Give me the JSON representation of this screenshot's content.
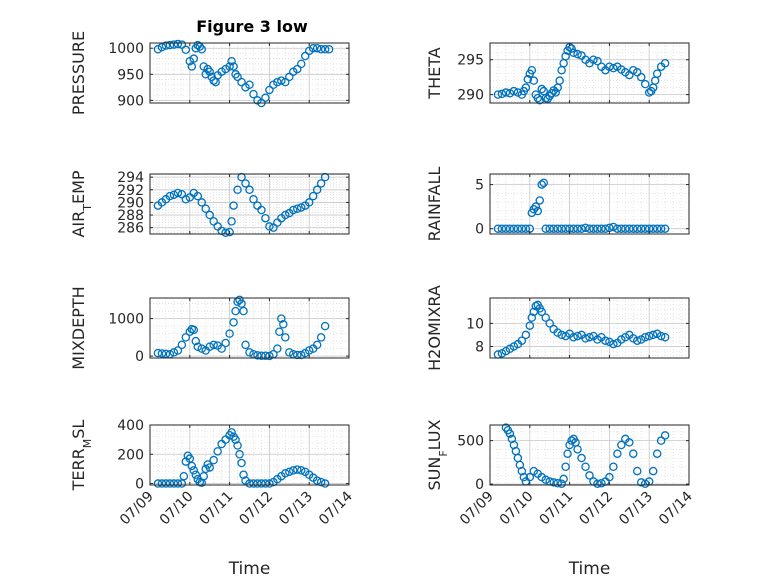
{
  "title": "Figure 3 low",
  "marker_color": "#0072BD",
  "x_tick_labels": [
    "07/09",
    "07/10",
    "07/11",
    "07/12",
    "07/13",
    "07/14"
  ],
  "chart_data": [
    {
      "type": "scatter",
      "id": "pressure",
      "ylabel": "PRESSURE",
      "xlabel": "",
      "xlim": [
        0,
        5
      ],
      "ylim": [
        895,
        1010
      ],
      "yticks": [
        900,
        950,
        1000
      ],
      "x": [
        0.2,
        0.3,
        0.4,
        0.5,
        0.6,
        0.7,
        0.8,
        0.9,
        1.0,
        1.05,
        1.1,
        1.15,
        1.2,
        1.25,
        1.3,
        1.35,
        1.4,
        1.45,
        1.5,
        1.55,
        1.6,
        1.65,
        1.7,
        1.8,
        1.9,
        2.0,
        2.05,
        2.1,
        2.15,
        2.2,
        2.3,
        2.4,
        2.5,
        2.6,
        2.7,
        2.8,
        2.9,
        3.0,
        3.1,
        3.2,
        3.3,
        3.4,
        3.5,
        3.6,
        3.7,
        3.8,
        3.9,
        4.0,
        4.1,
        4.2,
        4.3,
        4.4,
        4.5
      ],
      "y": [
        998,
        1002,
        1005,
        1006,
        1007,
        1008,
        1007,
        997,
        975,
        965,
        980,
        1000,
        1006,
        1003,
        998,
        965,
        950,
        960,
        955,
        945,
        938,
        935,
        948,
        955,
        960,
        965,
        975,
        965,
        950,
        945,
        935,
        925,
        930,
        912,
        900,
        895,
        905,
        920,
        930,
        935,
        938,
        935,
        945,
        955,
        960,
        970,
        985,
        995,
        1000,
        1000,
        998,
        998,
        998
      ]
    },
    {
      "type": "scatter",
      "id": "theta",
      "ylabel": "THETA",
      "xlabel": "",
      "xlim": [
        0,
        5
      ],
      "ylim": [
        288.8,
        297.4
      ],
      "yticks": [
        290,
        295
      ],
      "x": [
        0.2,
        0.3,
        0.4,
        0.5,
        0.6,
        0.7,
        0.8,
        0.85,
        0.9,
        0.95,
        1.0,
        1.05,
        1.1,
        1.15,
        1.2,
        1.25,
        1.3,
        1.35,
        1.4,
        1.45,
        1.5,
        1.55,
        1.6,
        1.65,
        1.7,
        1.75,
        1.8,
        1.85,
        1.9,
        1.95,
        2.0,
        2.05,
        2.1,
        2.2,
        2.3,
        2.4,
        2.5,
        2.6,
        2.7,
        2.8,
        2.9,
        3.0,
        3.1,
        3.2,
        3.3,
        3.4,
        3.5,
        3.6,
        3.7,
        3.8,
        3.9,
        4.0,
        4.05,
        4.1,
        4.15,
        4.2,
        4.3,
        4.4
      ],
      "y": [
        290.0,
        290.1,
        290.3,
        290.2,
        290.5,
        290.3,
        290.0,
        290.5,
        291.0,
        292.2,
        293.0,
        293.5,
        292.0,
        290.0,
        289.5,
        289.2,
        290.8,
        290.5,
        289.5,
        289.4,
        289.8,
        290.2,
        290.6,
        290.3,
        291.0,
        292.0,
        293.5,
        294.5,
        295.5,
        296.3,
        296.8,
        296.6,
        296.0,
        295.8,
        295.6,
        295.0,
        294.5,
        295.0,
        294.8,
        294.0,
        293.5,
        294.0,
        293.8,
        294.0,
        293.6,
        293.2,
        292.8,
        293.5,
        293.2,
        292.5,
        291.5,
        290.3,
        290.5,
        291.0,
        292.0,
        293.0,
        294.0,
        294.5
      ]
    },
    {
      "type": "scatter",
      "id": "air_temp",
      "ylabel": "AIR",
      "ylabel_sub": "T",
      "ylabel_suffix": "EMP",
      "xlabel": "",
      "xlim": [
        0,
        5
      ],
      "ylim": [
        285.0,
        294.5
      ],
      "yticks": [
        286,
        288,
        290,
        292,
        294
      ],
      "x": [
        0.2,
        0.3,
        0.4,
        0.5,
        0.6,
        0.7,
        0.8,
        0.9,
        1.0,
        1.1,
        1.2,
        1.3,
        1.4,
        1.5,
        1.6,
        1.7,
        1.8,
        1.9,
        2.0,
        2.05,
        2.1,
        2.2,
        2.3,
        2.4,
        2.5,
        2.6,
        2.7,
        2.8,
        2.9,
        3.0,
        3.1,
        3.2,
        3.3,
        3.4,
        3.5,
        3.6,
        3.7,
        3.8,
        3.9,
        4.0,
        4.1,
        4.2,
        4.3,
        4.4
      ],
      "y": [
        289.5,
        290.0,
        290.5,
        291.0,
        291.2,
        291.5,
        291.3,
        290.5,
        290.8,
        291.5,
        291.0,
        290.0,
        289.0,
        288.0,
        287.0,
        286.2,
        285.5,
        285.2,
        285.3,
        287.0,
        289.5,
        292.0,
        294.0,
        293.0,
        292.0,
        290.5,
        289.5,
        288.8,
        287.5,
        286.2,
        286.0,
        286.8,
        287.5,
        288.0,
        288.3,
        288.8,
        289.0,
        289.2,
        289.5,
        290.0,
        291.0,
        292.0,
        293.0,
        294.0
      ]
    },
    {
      "type": "scatter",
      "id": "rainfall",
      "ylabel": "RAINFALL",
      "xlabel": "",
      "xlim": [
        0,
        5
      ],
      "ylim": [
        -0.6,
        6.2
      ],
      "yticks": [
        0,
        5
      ],
      "x": [
        0.2,
        0.3,
        0.4,
        0.5,
        0.6,
        0.7,
        0.8,
        0.9,
        1.0,
        1.05,
        1.1,
        1.15,
        1.2,
        1.25,
        1.3,
        1.35,
        1.4,
        1.5,
        1.6,
        1.7,
        1.8,
        1.9,
        2.0,
        2.1,
        2.2,
        2.3,
        2.4,
        2.5,
        2.6,
        2.7,
        2.8,
        2.9,
        3.0,
        3.1,
        3.2,
        3.3,
        3.4,
        3.5,
        3.6,
        3.7,
        3.8,
        3.9,
        4.0,
        4.1,
        4.2,
        4.3,
        4.4
      ],
      "y": [
        0,
        0,
        0,
        0,
        0,
        0,
        0,
        0,
        0,
        1.8,
        2.2,
        2.5,
        2.0,
        3.2,
        5.0,
        5.2,
        0,
        0,
        0,
        0,
        0,
        0,
        0,
        0,
        0,
        0,
        0.1,
        0,
        0,
        0,
        0,
        0,
        0.1,
        0.2,
        0,
        0,
        0,
        0,
        0,
        0,
        0,
        0,
        0,
        0,
        0,
        0,
        0
      ]
    },
    {
      "type": "scatter",
      "id": "mixdepth",
      "ylabel": "MIXDEPTH",
      "xlabel": "",
      "xlim": [
        0,
        5
      ],
      "ylim": [
        -50,
        1550
      ],
      "yticks": [
        0,
        1000
      ],
      "x": [
        0.2,
        0.3,
        0.4,
        0.5,
        0.6,
        0.7,
        0.8,
        0.9,
        1.0,
        1.05,
        1.1,
        1.15,
        1.2,
        1.3,
        1.4,
        1.5,
        1.6,
        1.7,
        1.8,
        1.9,
        2.0,
        2.1,
        2.15,
        2.2,
        2.25,
        2.3,
        2.35,
        2.4,
        2.5,
        2.6,
        2.7,
        2.8,
        2.9,
        3.0,
        3.1,
        3.2,
        3.25,
        3.3,
        3.35,
        3.4,
        3.5,
        3.6,
        3.7,
        3.8,
        3.9,
        4.0,
        4.1,
        4.2,
        4.3,
        4.4
      ],
      "y": [
        80,
        70,
        60,
        50,
        100,
        150,
        300,
        500,
        650,
        720,
        700,
        400,
        250,
        200,
        150,
        250,
        300,
        280,
        200,
        350,
        600,
        900,
        1200,
        1450,
        1500,
        1400,
        1200,
        300,
        100,
        50,
        20,
        10,
        10,
        5,
        50,
        200,
        650,
        1000,
        850,
        500,
        100,
        50,
        30,
        30,
        80,
        150,
        200,
        300,
        500,
        800
      ]
    },
    {
      "type": "scatter",
      "id": "h2omixra",
      "ylabel": "H2OMIXRA",
      "xlabel": "",
      "xlim": [
        0,
        5
      ],
      "ylim": [
        7.0,
        12.2
      ],
      "yticks": [
        8,
        10
      ],
      "x": [
        0.2,
        0.3,
        0.4,
        0.5,
        0.6,
        0.7,
        0.8,
        0.9,
        1.0,
        1.05,
        1.1,
        1.15,
        1.2,
        1.25,
        1.3,
        1.4,
        1.5,
        1.6,
        1.7,
        1.8,
        1.9,
        2.0,
        2.1,
        2.2,
        2.3,
        2.4,
        2.5,
        2.6,
        2.7,
        2.8,
        2.9,
        3.0,
        3.1,
        3.2,
        3.3,
        3.4,
        3.5,
        3.6,
        3.7,
        3.8,
        3.9,
        4.0,
        4.1,
        4.2,
        4.3,
        4.4
      ],
      "y": [
        7.3,
        7.4,
        7.6,
        7.8,
        8.0,
        8.2,
        8.5,
        9.0,
        9.8,
        10.5,
        11.0,
        11.5,
        11.6,
        11.3,
        11.0,
        10.5,
        10.0,
        9.5,
        9.2,
        9.0,
        8.9,
        9.1,
        8.8,
        8.9,
        9.0,
        8.7,
        8.8,
        8.9,
        8.6,
        8.8,
        8.5,
        8.4,
        8.2,
        8.3,
        8.6,
        8.8,
        9.0,
        8.7,
        8.5,
        8.6,
        8.8,
        8.9,
        9.0,
        9.1,
        8.9,
        8.8
      ]
    },
    {
      "type": "scatter",
      "id": "terr_msl",
      "ylabel": "TERR",
      "ylabel_sub": "M",
      "ylabel_suffix": "SL",
      "xlabel": "Time",
      "xlim": [
        0,
        5
      ],
      "ylim": [
        -10,
        400
      ],
      "yticks": [
        0,
        200,
        400
      ],
      "x": [
        0.2,
        0.3,
        0.4,
        0.5,
        0.6,
        0.7,
        0.8,
        0.85,
        0.9,
        0.95,
        1.0,
        1.05,
        1.1,
        1.15,
        1.2,
        1.25,
        1.3,
        1.35,
        1.4,
        1.45,
        1.5,
        1.6,
        1.7,
        1.8,
        1.9,
        2.0,
        2.05,
        2.1,
        2.15,
        2.2,
        2.25,
        2.3,
        2.35,
        2.4,
        2.5,
        2.6,
        2.7,
        2.8,
        2.9,
        3.0,
        3.1,
        3.2,
        3.3,
        3.4,
        3.5,
        3.6,
        3.7,
        3.8,
        3.9,
        4.0,
        4.1,
        4.2,
        4.3,
        4.4
      ],
      "y": [
        0,
        0,
        0,
        0,
        0,
        0,
        0,
        50,
        150,
        190,
        170,
        120,
        90,
        60,
        30,
        10,
        5,
        50,
        100,
        130,
        110,
        160,
        220,
        270,
        300,
        330,
        350,
        320,
        300,
        260,
        200,
        140,
        60,
        20,
        0,
        0,
        0,
        0,
        0,
        0,
        10,
        30,
        50,
        70,
        80,
        90,
        95,
        90,
        80,
        60,
        40,
        20,
        10,
        0
      ]
    },
    {
      "type": "scatter",
      "id": "sunflux",
      "ylabel": "SUN",
      "ylabel_sub": "F",
      "ylabel_suffix": "LUX",
      "xlabel": "Time",
      "xlim": [
        0,
        5
      ],
      "ylim": [
        -10,
        680
      ],
      "yticks": [
        0,
        500
      ],
      "x": [
        0.4,
        0.45,
        0.5,
        0.55,
        0.6,
        0.65,
        0.7,
        0.75,
        0.8,
        0.85,
        0.9,
        1.0,
        1.1,
        1.2,
        1.3,
        1.4,
        1.5,
        1.6,
        1.7,
        1.8,
        1.85,
        1.9,
        1.95,
        2.0,
        2.05,
        2.1,
        2.15,
        2.2,
        2.3,
        2.4,
        2.5,
        2.6,
        2.7,
        2.8,
        2.9,
        3.0,
        3.1,
        3.2,
        3.3,
        3.4,
        3.5,
        3.6,
        3.7,
        3.8,
        3.9,
        4.0,
        4.1,
        4.2,
        4.3,
        4.4
      ],
      "y": [
        650,
        620,
        580,
        520,
        450,
        380,
        300,
        220,
        150,
        80,
        30,
        80,
        150,
        120,
        80,
        50,
        30,
        20,
        10,
        5,
        60,
        200,
        350,
        450,
        500,
        520,
        480,
        400,
        300,
        200,
        100,
        30,
        5,
        10,
        30,
        80,
        200,
        350,
        450,
        520,
        480,
        350,
        150,
        20,
        5,
        30,
        150,
        350,
        500,
        560
      ]
    }
  ]
}
